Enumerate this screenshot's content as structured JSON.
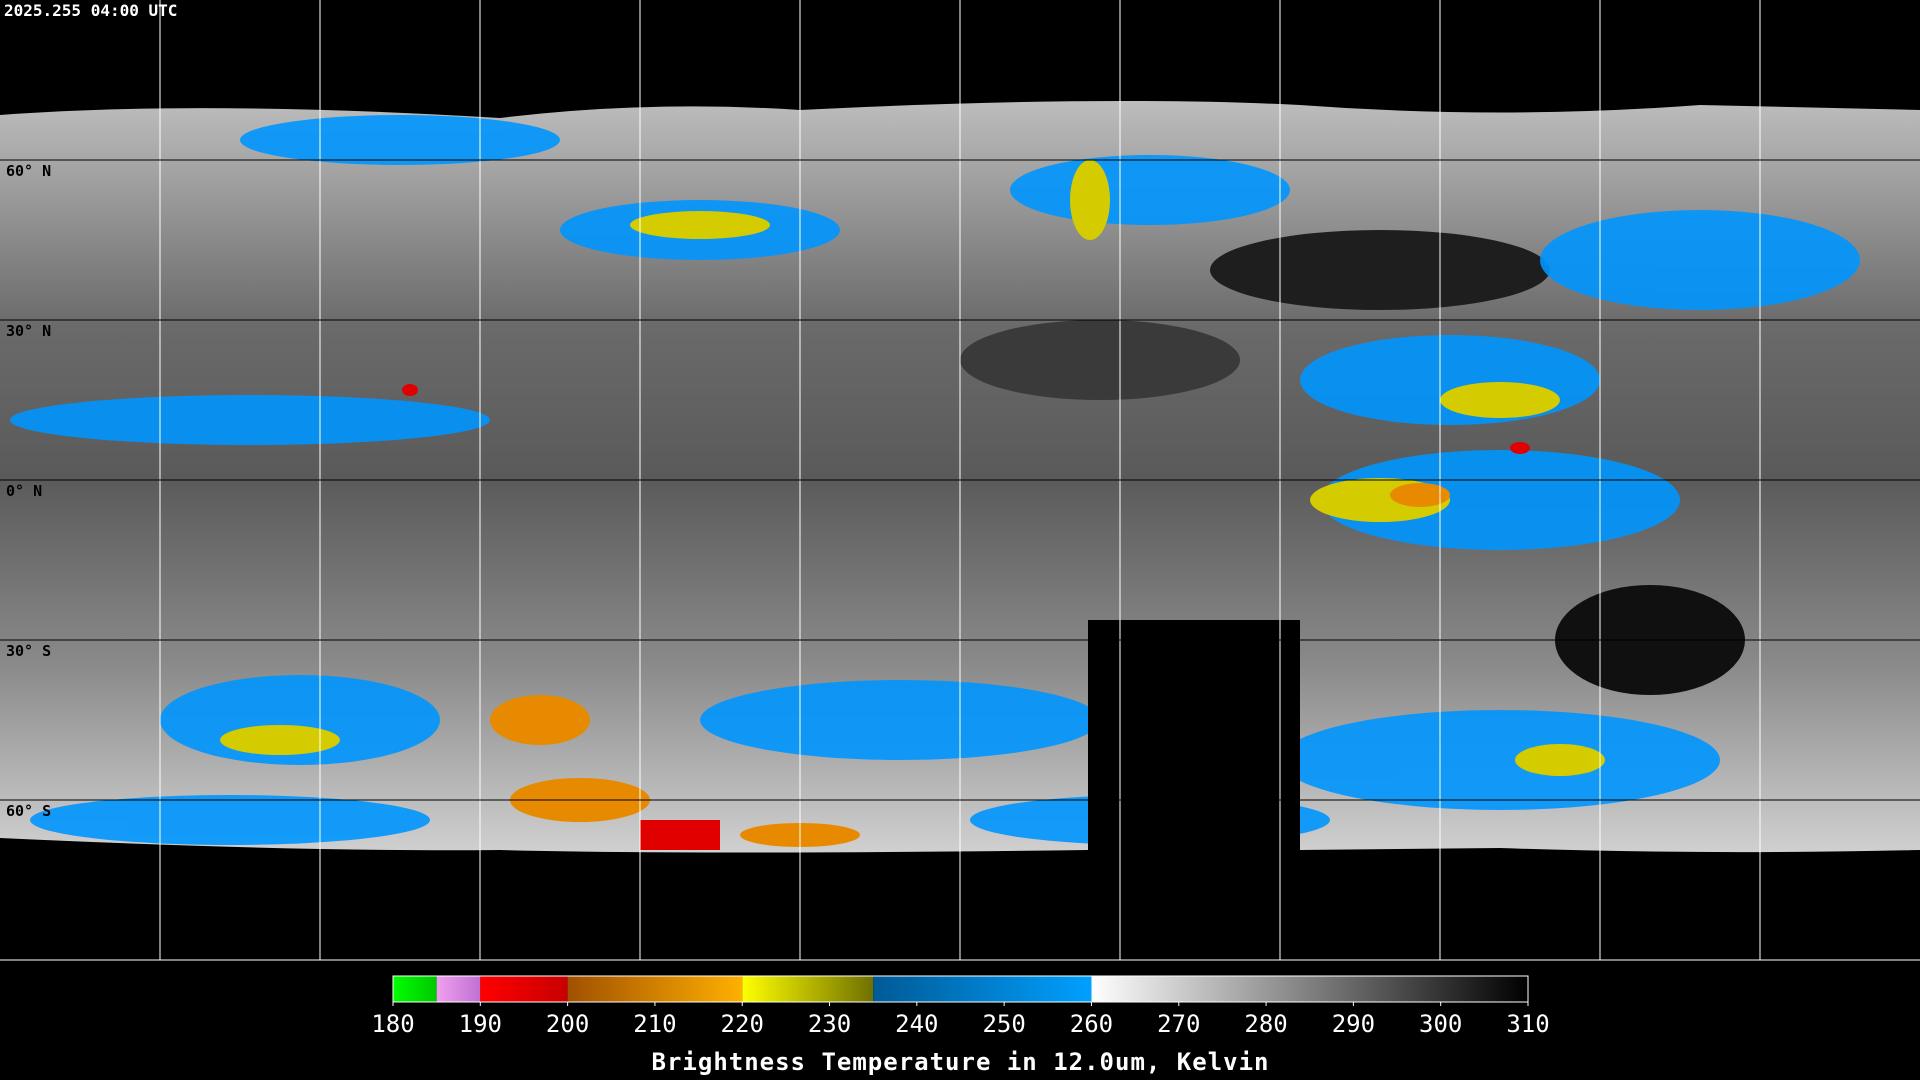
{
  "header": {
    "title": "2025.255 04:00 UTC"
  },
  "map": {
    "lat_labels": [
      "60° N",
      "30° N",
      "0° N",
      "30° S",
      "60° S"
    ]
  },
  "colorbar": {
    "ticks": [
      180,
      190,
      200,
      210,
      220,
      230,
      240,
      250,
      260,
      270,
      280,
      290,
      300,
      310
    ],
    "segments": [
      {
        "from": 180,
        "to": 185,
        "colors": [
          "#00ff00",
          "#00c800"
        ]
      },
      {
        "from": 185,
        "to": 190,
        "colors": [
          "#f0a0f0",
          "#c070d0"
        ]
      },
      {
        "from": 190,
        "to": 200,
        "colors": [
          "#ff0000",
          "#c80000"
        ]
      },
      {
        "from": 200,
        "to": 220,
        "colors": [
          "#a05000",
          "#ffb000"
        ]
      },
      {
        "from": 220,
        "to": 235,
        "colors": [
          "#ffff00",
          "#707000"
        ]
      },
      {
        "from": 235,
        "to": 260,
        "colors": [
          "#005a96",
          "#00a0ff"
        ]
      },
      {
        "from": 260,
        "to": 310,
        "colors": [
          "#ffffff",
          "#000000"
        ]
      }
    ],
    "label": "Brightness Temperature in 12.0um, Kelvin"
  }
}
